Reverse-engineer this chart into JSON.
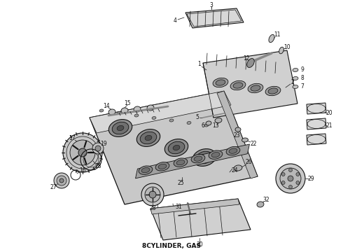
{
  "caption": "8CYLINDER, GAS",
  "caption_fontsize": 6.5,
  "background_color": "#ffffff",
  "fig_width": 4.9,
  "fig_height": 3.6,
  "dpi": 100,
  "line_color": "#111111",
  "fill_light": "#e0e0e0",
  "fill_mid": "#c0c0c0",
  "fill_dark": "#909090"
}
